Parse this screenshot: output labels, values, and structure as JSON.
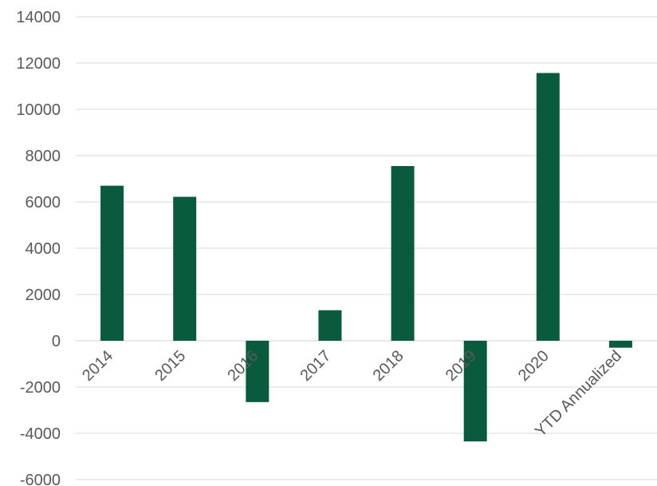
{
  "chart_data": {
    "type": "bar",
    "title": "",
    "xlabel": "",
    "ylabel": "",
    "categories": [
      "2014",
      "2015",
      "2016",
      "2017",
      "2018",
      "2019",
      "2020",
      "YTD Annualized"
    ],
    "values": [
      6700,
      6220,
      -2650,
      1320,
      7550,
      -4350,
      11570,
      -300
    ],
    "ylim": [
      -6000,
      14000
    ],
    "yticks": [
      -6000,
      -4000,
      -2000,
      0,
      2000,
      4000,
      6000,
      8000,
      10000,
      12000,
      14000
    ],
    "ytick_labels": [
      "-6000",
      "-4000",
      "-2000",
      "0",
      "2000",
      "4000",
      "6000",
      "8000",
      "10000",
      "12000",
      "14000"
    ],
    "grid": true,
    "legend": "none",
    "bar_color": "#0a5a3e",
    "grid_color": "#d9d9d9",
    "text_color": "#595959"
  }
}
